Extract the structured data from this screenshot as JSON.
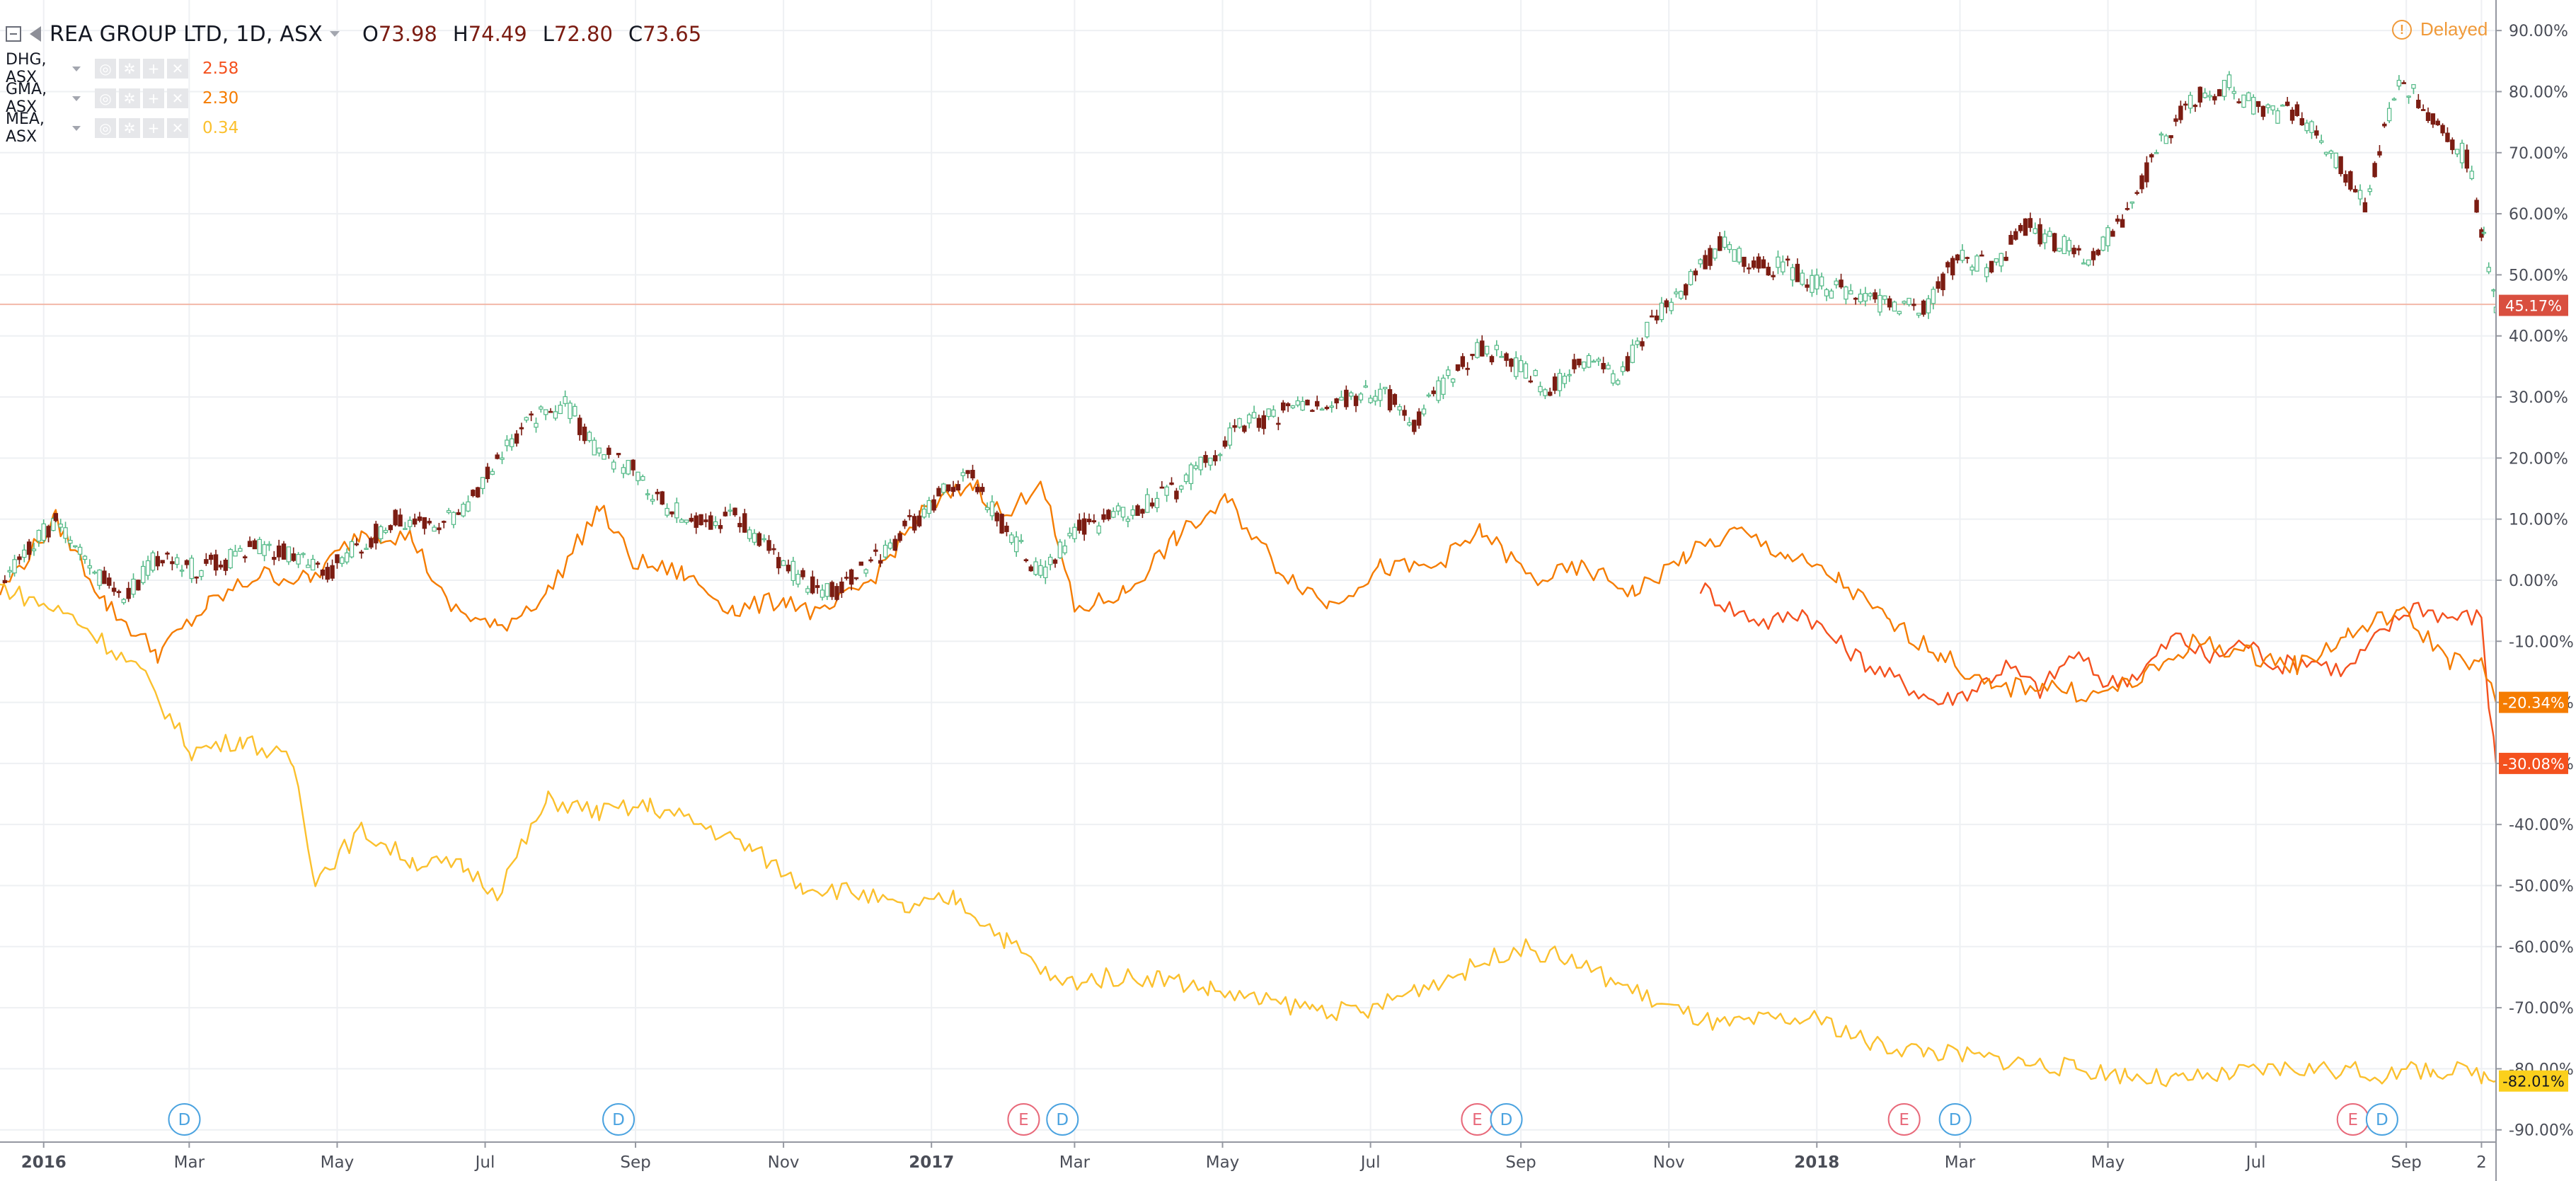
{
  "header": {
    "main_symbol": "REA GROUP LTD, 1D, ASX",
    "ohlc": [
      {
        "label": "O",
        "value": "73.98"
      },
      {
        "label": "H",
        "value": "74.49"
      },
      {
        "label": "L",
        "value": "72.80"
      },
      {
        "label": "C",
        "value": "73.65"
      }
    ],
    "compare_series": [
      {
        "symbol": "DHG, ASX",
        "value": "2.58",
        "color": "#f4511e"
      },
      {
        "symbol": "GMA, ASX",
        "value": "2.30",
        "color": "#f57c00"
      },
      {
        "symbol": "MEA, ASX",
        "value": "0.34",
        "color": "#fbc02d"
      }
    ],
    "delayed_label": "Delayed"
  },
  "colors": {
    "up_candle": "#53b987",
    "down_candle": "#7b1c12",
    "grid": "#eef0f3",
    "axis_text": "#4a4d57",
    "dividend_marker": "#4ba3e0",
    "earnings_marker": "#e8697a"
  },
  "chart_data": {
    "type": "line",
    "title": "REA GROUP LTD, 1D, ASX",
    "y_scale": "percent",
    "ylim": [
      -92,
      95
    ],
    "y_ticks": [
      "90.00%",
      "80.00%",
      "70.00%",
      "60.00%",
      "50.00%",
      "40.00%",
      "30.00%",
      "20.00%",
      "10.00%",
      "0.00%",
      "-10.00%",
      "-20.00%",
      "-30.00%",
      "-40.00%",
      "-50.00%",
      "-60.00%",
      "-70.00%",
      "-80.00%",
      "-90.00%"
    ],
    "y_tick_values": [
      90,
      80,
      70,
      60,
      50,
      40,
      30,
      20,
      10,
      0,
      -10,
      -20,
      -30,
      -40,
      -50,
      -60,
      -70,
      -80,
      -90
    ],
    "x_ticks": [
      {
        "label": "2016",
        "date": "2016-01-01",
        "bold": true
      },
      {
        "label": "Mar",
        "date": "2016-03-01"
      },
      {
        "label": "May",
        "date": "2016-05-01"
      },
      {
        "label": "Jul",
        "date": "2016-07-01"
      },
      {
        "label": "Sep",
        "date": "2016-09-01"
      },
      {
        "label": "Nov",
        "date": "2016-11-01"
      },
      {
        "label": "2017",
        "date": "2017-01-01",
        "bold": true
      },
      {
        "label": "Mar",
        "date": "2017-03-01"
      },
      {
        "label": "May",
        "date": "2017-05-01"
      },
      {
        "label": "Jul",
        "date": "2017-07-01"
      },
      {
        "label": "Sep",
        "date": "2017-09-01"
      },
      {
        "label": "Nov",
        "date": "2017-11-01"
      },
      {
        "label": "2018",
        "date": "2018-01-01",
        "bold": true
      },
      {
        "label": "Mar",
        "date": "2018-03-01"
      },
      {
        "label": "May",
        "date": "2018-05-01"
      },
      {
        "label": "Jul",
        "date": "2018-07-01"
      },
      {
        "label": "Sep",
        "date": "2018-09-01"
      },
      {
        "label": "2",
        "date": "2018-10-02"
      }
    ],
    "x_range": [
      "2015-12-14",
      "2018-10-08"
    ],
    "grid": true,
    "current_price_line": 45.17,
    "series": [
      {
        "name": "REA GROUP LTD, 1D, ASX",
        "style": "candles",
        "color": "#53b987",
        "last_label": "45.17%",
        "points": [
          [
            "2015-12-14",
            0
          ],
          [
            "2016-01-06",
            10
          ],
          [
            "2016-01-20",
            2
          ],
          [
            "2016-02-03",
            -3
          ],
          [
            "2016-02-17",
            4
          ],
          [
            "2016-03-02",
            2
          ],
          [
            "2016-03-16",
            3
          ],
          [
            "2016-03-30",
            6
          ],
          [
            "2016-04-13",
            4
          ],
          [
            "2016-04-27",
            1
          ],
          [
            "2016-05-11",
            6
          ],
          [
            "2016-05-25",
            10
          ],
          [
            "2016-06-08",
            9
          ],
          [
            "2016-06-22",
            11
          ],
          [
            "2016-07-06",
            20
          ],
          [
            "2016-07-20",
            26
          ],
          [
            "2016-08-03",
            29
          ],
          [
            "2016-08-17",
            21
          ],
          [
            "2016-08-31",
            18
          ],
          [
            "2016-09-14",
            12
          ],
          [
            "2016-09-28",
            9
          ],
          [
            "2016-10-12",
            11
          ],
          [
            "2016-10-26",
            5
          ],
          [
            "2016-11-09",
            0
          ],
          [
            "2016-11-23",
            -2
          ],
          [
            "2016-12-07",
            3
          ],
          [
            "2016-12-21",
            8
          ],
          [
            "2017-01-04",
            14
          ],
          [
            "2017-01-18",
            17
          ],
          [
            "2017-02-01",
            8
          ],
          [
            "2017-02-15",
            1
          ],
          [
            "2017-03-01",
            8
          ],
          [
            "2017-03-15",
            10
          ],
          [
            "2017-03-29",
            12
          ],
          [
            "2017-04-12",
            15
          ],
          [
            "2017-04-26",
            20
          ],
          [
            "2017-05-10",
            26
          ],
          [
            "2017-05-24",
            27
          ],
          [
            "2017-06-07",
            29
          ],
          [
            "2017-06-21",
            30
          ],
          [
            "2017-07-05",
            31
          ],
          [
            "2017-07-19",
            26
          ],
          [
            "2017-08-02",
            33
          ],
          [
            "2017-08-16",
            38
          ],
          [
            "2017-08-30",
            35
          ],
          [
            "2017-09-13",
            31
          ],
          [
            "2017-09-27",
            36
          ],
          [
            "2017-10-11",
            33
          ],
          [
            "2017-10-25",
            42
          ],
          [
            "2017-11-08",
            48
          ],
          [
            "2017-11-22",
            55
          ],
          [
            "2017-12-06",
            52
          ],
          [
            "2017-12-20",
            51
          ],
          [
            "2018-01-03",
            48
          ],
          [
            "2018-01-17",
            47
          ],
          [
            "2018-01-31",
            45
          ],
          [
            "2018-02-14",
            44
          ],
          [
            "2018-02-28",
            53
          ],
          [
            "2018-03-14",
            51
          ],
          [
            "2018-03-28",
            58
          ],
          [
            "2018-04-11",
            55
          ],
          [
            "2018-04-25",
            53
          ],
          [
            "2018-05-09",
            60
          ],
          [
            "2018-05-23",
            72
          ],
          [
            "2018-06-06",
            79
          ],
          [
            "2018-06-20",
            81
          ],
          [
            "2018-07-04",
            76
          ],
          [
            "2018-07-18",
            77
          ],
          [
            "2018-08-01",
            70
          ],
          [
            "2018-08-15",
            62
          ],
          [
            "2018-08-29",
            82
          ],
          [
            "2018-09-12",
            76
          ],
          [
            "2018-09-26",
            69
          ],
          [
            "2018-10-03",
            56
          ],
          [
            "2018-10-08",
            45
          ]
        ]
      },
      {
        "name": "DHG, ASX",
        "style": "line",
        "color": "#f4511e",
        "last_label": "-30.08%",
        "points": [
          [
            "2017-11-14",
            -1
          ],
          [
            "2017-11-28",
            -5
          ],
          [
            "2017-12-12",
            -7
          ],
          [
            "2017-12-26",
            -5
          ],
          [
            "2018-01-09",
            -10
          ],
          [
            "2018-01-23",
            -14
          ],
          [
            "2018-02-06",
            -17
          ],
          [
            "2018-02-20",
            -20
          ],
          [
            "2018-03-06",
            -18
          ],
          [
            "2018-03-20",
            -14
          ],
          [
            "2018-04-03",
            -18
          ],
          [
            "2018-04-17",
            -12
          ],
          [
            "2018-05-01",
            -17
          ],
          [
            "2018-05-15",
            -15
          ],
          [
            "2018-05-29",
            -9
          ],
          [
            "2018-06-12",
            -13
          ],
          [
            "2018-06-26",
            -10
          ],
          [
            "2018-07-10",
            -14
          ],
          [
            "2018-07-24",
            -13
          ],
          [
            "2018-08-07",
            -15
          ],
          [
            "2018-08-21",
            -9
          ],
          [
            "2018-09-04",
            -4
          ],
          [
            "2018-09-18",
            -6
          ],
          [
            "2018-10-02",
            -6
          ],
          [
            "2018-10-05",
            -20
          ],
          [
            "2018-10-08",
            -30
          ]
        ]
      },
      {
        "name": "GMA, ASX",
        "style": "line",
        "color": "#f57c00",
        "last_label": "-20.34%",
        "points": [
          [
            "2015-12-14",
            -2
          ],
          [
            "2016-01-06",
            10
          ],
          [
            "2016-01-27",
            -4
          ],
          [
            "2016-02-17",
            -12
          ],
          [
            "2016-03-09",
            -4
          ],
          [
            "2016-03-30",
            1
          ],
          [
            "2016-04-20",
            0
          ],
          [
            "2016-05-11",
            8
          ],
          [
            "2016-06-01",
            7
          ],
          [
            "2016-06-15",
            -4
          ],
          [
            "2016-07-06",
            -8
          ],
          [
            "2016-07-27",
            -2
          ],
          [
            "2016-08-17",
            12
          ],
          [
            "2016-08-31",
            3
          ],
          [
            "2016-09-21",
            1
          ],
          [
            "2016-10-12",
            -5
          ],
          [
            "2016-11-02",
            -3
          ],
          [
            "2016-11-16",
            -6
          ],
          [
            "2016-12-07",
            0
          ],
          [
            "2016-12-28",
            11
          ],
          [
            "2017-01-18",
            16
          ],
          [
            "2017-02-01",
            10
          ],
          [
            "2017-02-15",
            17
          ],
          [
            "2017-03-01",
            -5
          ],
          [
            "2017-03-22",
            -2
          ],
          [
            "2017-04-12",
            7
          ],
          [
            "2017-05-03",
            13
          ],
          [
            "2017-05-24",
            2
          ],
          [
            "2017-06-14",
            -4
          ],
          [
            "2017-07-05",
            2
          ],
          [
            "2017-07-26",
            2
          ],
          [
            "2017-08-16",
            8
          ],
          [
            "2017-09-06",
            0
          ],
          [
            "2017-09-27",
            2
          ],
          [
            "2017-10-18",
            -2
          ],
          [
            "2017-11-08",
            4
          ],
          [
            "2017-11-29",
            8
          ],
          [
            "2017-12-20",
            4
          ],
          [
            "2018-01-10",
            0
          ],
          [
            "2018-01-31",
            -7
          ],
          [
            "2018-02-21",
            -12
          ],
          [
            "2018-03-14",
            -18
          ],
          [
            "2018-04-04",
            -17
          ],
          [
            "2018-04-25",
            -19
          ],
          [
            "2018-05-16",
            -16
          ],
          [
            "2018-06-06",
            -10
          ],
          [
            "2018-06-27",
            -12
          ],
          [
            "2018-07-18",
            -14
          ],
          [
            "2018-08-08",
            -9
          ],
          [
            "2018-08-29",
            -5
          ],
          [
            "2018-09-19",
            -13
          ],
          [
            "2018-10-02",
            -14
          ],
          [
            "2018-10-08",
            -20
          ]
        ]
      },
      {
        "name": "MEA, ASX",
        "style": "line",
        "color": "#fbc02d",
        "last_label": "-82.01%",
        "points": [
          [
            "2015-12-14",
            -1
          ],
          [
            "2016-01-13",
            -6
          ],
          [
            "2016-02-10",
            -15
          ],
          [
            "2016-03-02",
            -28
          ],
          [
            "2016-03-23",
            -26
          ],
          [
            "2016-04-13",
            -30
          ],
          [
            "2016-04-22",
            -49
          ],
          [
            "2016-05-11",
            -41
          ],
          [
            "2016-06-01",
            -46
          ],
          [
            "2016-06-22",
            -47
          ],
          [
            "2016-07-06",
            -51
          ],
          [
            "2016-07-27",
            -36
          ],
          [
            "2016-08-17",
            -38
          ],
          [
            "2016-09-07",
            -37
          ],
          [
            "2016-09-28",
            -40
          ],
          [
            "2016-10-19",
            -44
          ],
          [
            "2016-11-09",
            -50
          ],
          [
            "2016-11-30",
            -51
          ],
          [
            "2016-12-21",
            -54
          ],
          [
            "2017-01-11",
            -52
          ],
          [
            "2017-02-01",
            -59
          ],
          [
            "2017-02-22",
            -66
          ],
          [
            "2017-03-15",
            -65
          ],
          [
            "2017-04-05",
            -65
          ],
          [
            "2017-04-26",
            -67
          ],
          [
            "2017-05-17",
            -69
          ],
          [
            "2017-06-07",
            -70
          ],
          [
            "2017-06-28",
            -71
          ],
          [
            "2017-07-19",
            -67
          ],
          [
            "2017-08-09",
            -64
          ],
          [
            "2017-08-30",
            -60
          ],
          [
            "2017-09-20",
            -62
          ],
          [
            "2017-10-11",
            -66
          ],
          [
            "2017-11-01",
            -70
          ],
          [
            "2017-11-22",
            -73
          ],
          [
            "2017-12-13",
            -72
          ],
          [
            "2018-01-03",
            -72
          ],
          [
            "2018-01-24",
            -76
          ],
          [
            "2018-02-14",
            -77
          ],
          [
            "2018-03-07",
            -78
          ],
          [
            "2018-03-28",
            -79
          ],
          [
            "2018-04-18",
            -80
          ],
          [
            "2018-05-09",
            -81
          ],
          [
            "2018-05-30",
            -82
          ],
          [
            "2018-06-20",
            -81
          ],
          [
            "2018-07-11",
            -80
          ],
          [
            "2018-08-01",
            -80
          ],
          [
            "2018-08-22",
            -81
          ],
          [
            "2018-09-12",
            -80
          ],
          [
            "2018-10-03",
            -81
          ],
          [
            "2018-10-08",
            -82
          ]
        ]
      }
    ],
    "event_markers": [
      {
        "type": "D",
        "date": "2016-02-28"
      },
      {
        "type": "D",
        "date": "2016-08-25"
      },
      {
        "type": "E",
        "date": "2017-02-08"
      },
      {
        "type": "D",
        "date": "2017-02-24"
      },
      {
        "type": "E",
        "date": "2017-08-14"
      },
      {
        "type": "D",
        "date": "2017-08-26"
      },
      {
        "type": "E",
        "date": "2018-02-06"
      },
      {
        "type": "D",
        "date": "2018-02-27"
      },
      {
        "type": "E",
        "date": "2018-08-10"
      },
      {
        "type": "D",
        "date": "2018-08-22"
      }
    ]
  }
}
